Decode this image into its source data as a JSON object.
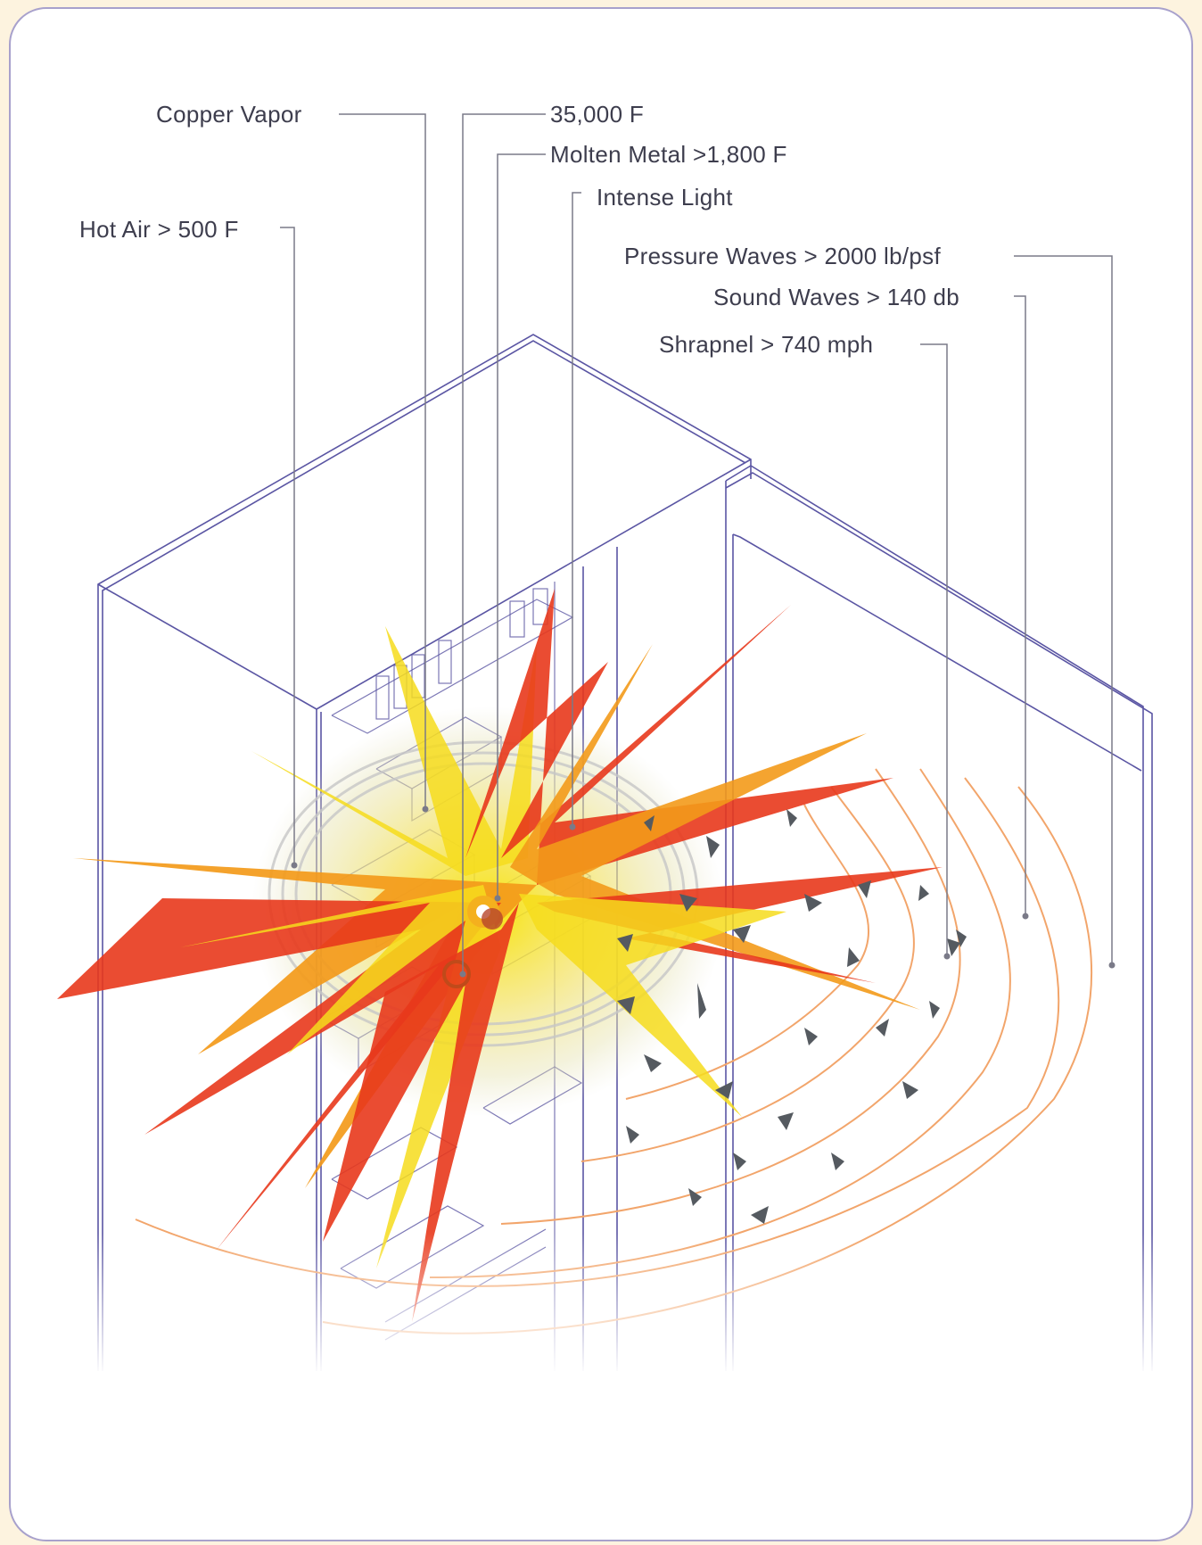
{
  "labels": {
    "copper_vapor": "Copper Vapor",
    "temperature": "35,000 F",
    "molten_metal": "Molten Metal >1,800 F",
    "intense_light": "Intense Light",
    "hot_air": "Hot Air > 500 F",
    "pressure_waves": "Pressure Waves > 2000 lb/psf",
    "sound_waves": "Sound Waves > 140 db",
    "shrapnel": "Shrapnel > 740 mph"
  },
  "colors": {
    "page_background": "#fdf3df",
    "frame_border": "#a8a1cc",
    "cabinet_lines": "#5a55a3",
    "flame_red": "#e8381c",
    "flame_orange": "#f39a1a",
    "flame_yellow": "#f6dc1c",
    "pressure_wave": "#f2a56b",
    "shrapnel": "#555a60",
    "leader_line": "#7a7a88"
  }
}
